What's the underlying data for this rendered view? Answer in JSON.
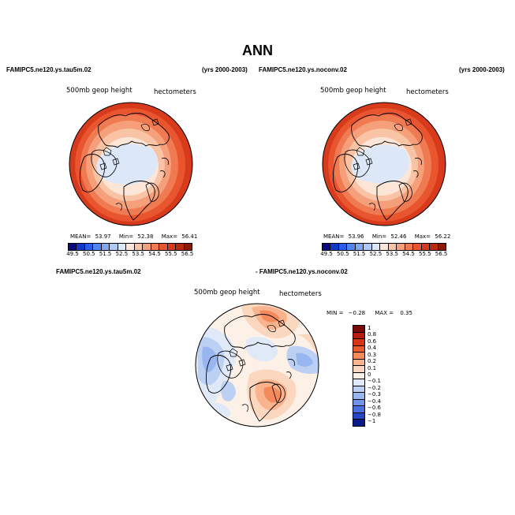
{
  "title": "ANN",
  "panel1": {
    "case": "FAMIPC5.ne120.ys.tau5m.02",
    "years": "(yrs 2000-2003)",
    "field": "500mb geop height",
    "units": "hectometers",
    "mean_label": "MEAN=",
    "mean": "53.97",
    "min_label": "Min=",
    "min": "52.38",
    "max_label": "Max=",
    "max": "56.41"
  },
  "panel2": {
    "case": "FAMIPC5.ne120.ys.noconv.02",
    "years": "(yrs 2000-2003)",
    "field": "500mb geop height",
    "units": "hectometers",
    "mean_label": "MEAN=",
    "mean": "53.96",
    "min_label": "Min=",
    "min": "52.46",
    "max_label": "Max=",
    "max": "56.22"
  },
  "colorbar": {
    "labels": [
      "49.5",
      "50.5",
      "51.5",
      "52.5",
      "53.5",
      "54.5",
      "55.5",
      "56.5"
    ],
    "colors": [
      "#0a0a80",
      "#1238c8",
      "#2b5ee8",
      "#4f86f0",
      "#7fa8f0",
      "#b0c8f4",
      "#dce8f8",
      "#fde6d8",
      "#f9c4a6",
      "#f5a07a",
      "#f07a52",
      "#e8552e",
      "#d83a1c",
      "#b82a10",
      "#8a1a08"
    ]
  },
  "diff": {
    "case_a": "FAMIPC5.ne120.ys.tau5m.02",
    "case_b": "- FAMIPC5.ne120.ys.noconv.02",
    "field": "500mb geop height",
    "units": "hectometers",
    "min_label": "MIN =",
    "min": "−0.28",
    "max_label": "MAX =",
    "max": "0.35",
    "colorbar_labels": [
      "1",
      "0.8",
      "0.6",
      "0.4",
      "0.3",
      "0.2",
      "0.1",
      "0",
      "−0.1",
      "−0.2",
      "−0.3",
      "−0.4",
      "−0.6",
      "−0.8",
      "−1"
    ],
    "colorbar_colors": [
      "#7a0a0a",
      "#b81c10",
      "#d83418",
      "#ea5a30",
      "#f58a5c",
      "#f9b48e",
      "#fcd7c0",
      "#fdf0e6",
      "#dfe9f8",
      "#bcd0f4",
      "#98b6f0",
      "#6f94ea",
      "#4a70e0",
      "#2446c4",
      "#0a1a8a"
    ]
  }
}
